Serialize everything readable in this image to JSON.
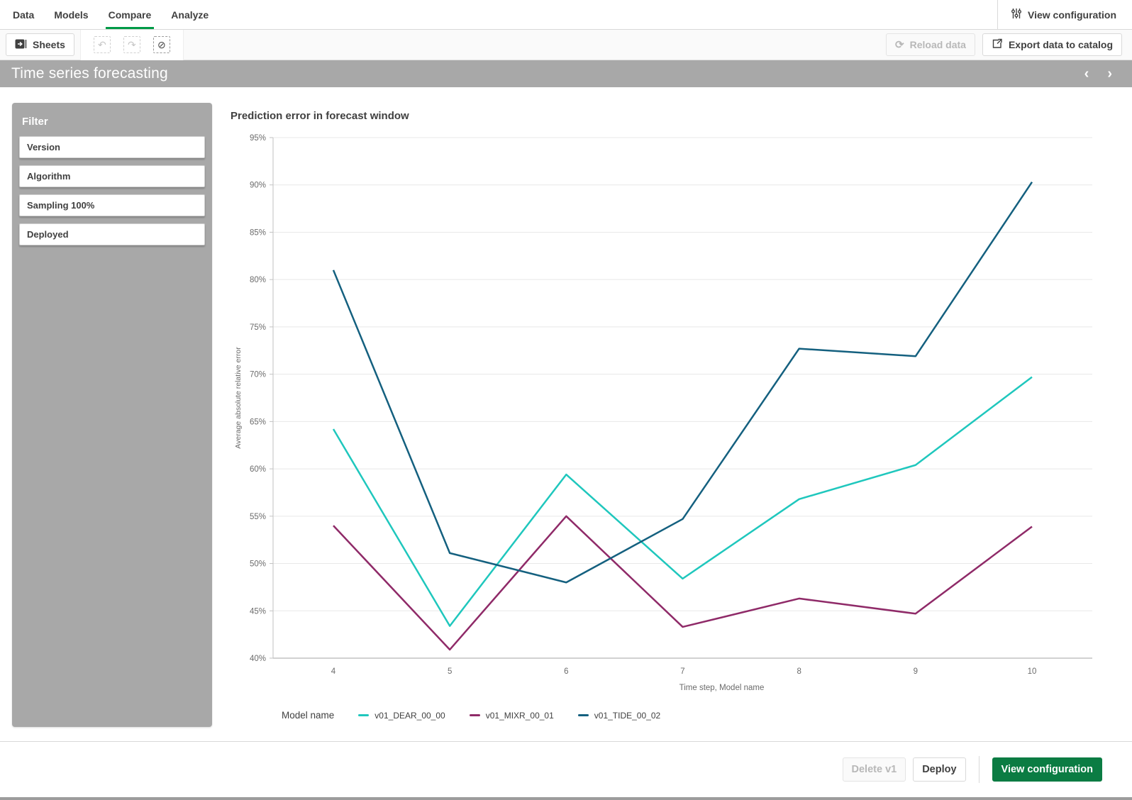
{
  "nav": {
    "tabs": [
      {
        "label": "Data",
        "active": false
      },
      {
        "label": "Models",
        "active": false
      },
      {
        "label": "Compare",
        "active": true
      },
      {
        "label": "Analyze",
        "active": false
      }
    ],
    "view_configuration_label": "View configuration"
  },
  "toolbar": {
    "sheets_label": "Sheets",
    "reload_label": "Reload data",
    "export_label": "Export data to catalog"
  },
  "title_bar": {
    "title": "Time series forecasting"
  },
  "sidebar": {
    "heading": "Filter",
    "filters": [
      {
        "label": "Version"
      },
      {
        "label": "Algorithm"
      },
      {
        "label": "Sampling 100%"
      },
      {
        "label": "Deployed"
      }
    ]
  },
  "footer": {
    "delete_label": "Delete v1",
    "deploy_label": "Deploy",
    "view_configuration_label": "View configuration"
  },
  "colors": {
    "accent_green": "#009a47",
    "button_green": "#0b7c43",
    "gray_panel": "#a8a8a8",
    "gridline": "#e8e8e8",
    "axis": "#c2c2c2",
    "tick_text": "#6b6b6b"
  },
  "chart_data": {
    "type": "line",
    "title": "Prediction error in forecast window",
    "xlabel": "Time step, Model name",
    "ylabel": "Average absolute relative error",
    "legend_title": "Model name",
    "legend_position": "bottom",
    "grid": true,
    "categories": [
      4,
      5,
      6,
      7,
      8,
      9,
      10
    ],
    "ylim": [
      40,
      95
    ],
    "ytick_step": 5,
    "ytick_format": "percent",
    "series": [
      {
        "name": "v01_DEAR_00_00",
        "color": "#1fc7bd",
        "values": [
          64.2,
          43.4,
          59.4,
          48.4,
          56.8,
          60.4,
          69.7
        ]
      },
      {
        "name": "v01_MIXR_00_01",
        "color": "#8f2a68",
        "values": [
          54.0,
          40.9,
          55.0,
          43.3,
          46.3,
          44.7,
          53.9
        ]
      },
      {
        "name": "v01_TIDE_00_02",
        "color": "#14607f",
        "values": [
          81.0,
          51.1,
          48.0,
          54.7,
          72.7,
          71.9,
          90.3
        ]
      }
    ]
  }
}
